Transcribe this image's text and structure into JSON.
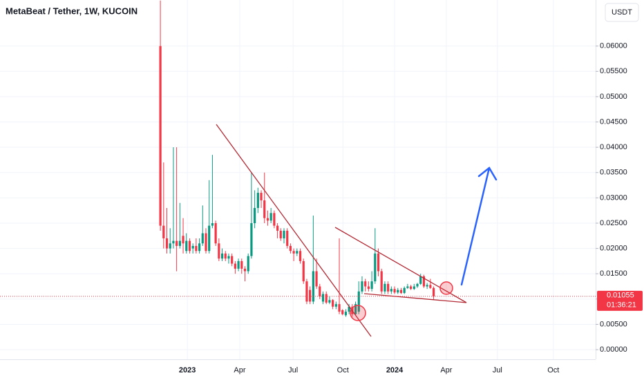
{
  "chart_data": {
    "type": "candlestick",
    "title": "MetaBeat / Tether, 1W, KUCOIN",
    "currency": "USDT",
    "up_color": "#089981",
    "down_color": "#f23645",
    "grid": true,
    "ylim": [
      -0.0019,
      0.0691
    ],
    "xlim": [
      -49.3,
      133.8
    ],
    "yticks": [
      {
        "value": 0,
        "label": "0.00000"
      },
      {
        "value": 0.005,
        "label": "0.00500"
      },
      {
        "value": 0.01,
        "label": "0.01000"
      },
      {
        "value": 0.015,
        "label": "0.01500"
      },
      {
        "value": 0.02,
        "label": "0.02000"
      },
      {
        "value": 0.025,
        "label": "0.02500"
      },
      {
        "value": 0.03,
        "label": "0.03000"
      },
      {
        "value": 0.035,
        "label": "0.03500"
      },
      {
        "value": 0.04,
        "label": "0.04000"
      },
      {
        "value": 0.045,
        "label": "0.04500"
      },
      {
        "value": 0.05,
        "label": "0.05000"
      },
      {
        "value": 0.055,
        "label": "0.05500"
      },
      {
        "value": 0.06,
        "label": "0.06000"
      }
    ],
    "xticks": [
      {
        "value": 8.3,
        "label": "2023"
      },
      {
        "value": 24.4,
        "label": "Apr"
      },
      {
        "value": 40.8,
        "label": "Jul"
      },
      {
        "value": 56.1,
        "label": "Oct"
      },
      {
        "value": 72.0,
        "label": "2024"
      },
      {
        "value": 87.9,
        "label": "Apr"
      },
      {
        "value": 103.6,
        "label": "Jul"
      },
      {
        "value": 120.8,
        "label": "Oct"
      }
    ],
    "current_price": {
      "value": 0.01055,
      "label": "0.01055"
    },
    "countdown": "01:36:21",
    "ohlc": [
      [
        0.06,
        0.069,
        0.0235,
        0.0245
      ],
      [
        0.0245,
        0.037,
        0.02,
        0.022
      ],
      [
        0.022,
        0.028,
        0.019,
        0.02
      ],
      [
        0.02,
        0.024,
        0.019,
        0.021
      ],
      [
        0.021,
        0.04,
        0.02,
        0.0215
      ],
      [
        0.0215,
        0.04,
        0.0155,
        0.0205
      ],
      [
        0.0205,
        0.029,
        0.02,
        0.0215
      ],
      [
        0.0225,
        0.026,
        0.019,
        0.021
      ],
      [
        0.0195,
        0.023,
        0.019,
        0.0215
      ],
      [
        0.0215,
        0.022,
        0.019,
        0.0195
      ],
      [
        0.02,
        0.021,
        0.019,
        0.0205
      ],
      [
        0.0205,
        0.022,
        0.019,
        0.0195
      ],
      [
        0.0195,
        0.022,
        0.019,
        0.021
      ],
      [
        0.021,
        0.0285,
        0.0205,
        0.023
      ],
      [
        0.023,
        0.024,
        0.019,
        0.0195
      ],
      [
        0.0195,
        0.0335,
        0.019,
        0.0245
      ],
      [
        0.0245,
        0.0385,
        0.024,
        0.025
      ],
      [
        0.025,
        0.0255,
        0.0205,
        0.021
      ],
      [
        0.021,
        0.022,
        0.0175,
        0.018
      ],
      [
        0.018,
        0.02,
        0.0175,
        0.019
      ],
      [
        0.019,
        0.0195,
        0.0175,
        0.018
      ],
      [
        0.018,
        0.019,
        0.017,
        0.0185
      ],
      [
        0.0185,
        0.019,
        0.0165,
        0.017
      ],
      [
        0.017,
        0.0175,
        0.015,
        0.016
      ],
      [
        0.016,
        0.018,
        0.0155,
        0.0175
      ],
      [
        0.0175,
        0.018,
        0.015,
        0.016
      ],
      [
        0.016,
        0.0165,
        0.0135,
        0.0155
      ],
      [
        0.0155,
        0.019,
        0.015,
        0.0185
      ],
      [
        0.0185,
        0.035,
        0.018,
        0.025
      ],
      [
        0.025,
        0.0315,
        0.024,
        0.028
      ],
      [
        0.028,
        0.032,
        0.027,
        0.031
      ],
      [
        0.031,
        0.0315,
        0.028,
        0.0295
      ],
      [
        0.0295,
        0.035,
        0.025,
        0.026
      ],
      [
        0.026,
        0.0275,
        0.0245,
        0.0255
      ],
      [
        0.0255,
        0.028,
        0.025,
        0.027
      ],
      [
        0.027,
        0.0275,
        0.024,
        0.0245
      ],
      [
        0.0245,
        0.025,
        0.022,
        0.0235
      ],
      [
        0.0235,
        0.024,
        0.0215,
        0.022
      ],
      [
        0.022,
        0.024,
        0.021,
        0.0235
      ],
      [
        0.0235,
        0.024,
        0.02,
        0.0205
      ],
      [
        0.0205,
        0.021,
        0.019,
        0.0195
      ],
      [
        0.0195,
        0.02,
        0.0175,
        0.019
      ],
      [
        0.019,
        0.02,
        0.0185,
        0.0195
      ],
      [
        0.0195,
        0.02,
        0.017,
        0.0175
      ],
      [
        0.0175,
        0.018,
        0.013,
        0.0135
      ],
      [
        0.0135,
        0.014,
        0.009,
        0.0095
      ],
      [
        0.0118,
        0.0125,
        0.009,
        0.0095
      ],
      [
        0.0095,
        0.0265,
        0.009,
        0.0155
      ],
      [
        0.0155,
        0.018,
        0.012,
        0.0125
      ],
      [
        0.0125,
        0.013,
        0.01,
        0.0105
      ],
      [
        0.0095,
        0.0115,
        0.009,
        0.011
      ],
      [
        0.011,
        0.0115,
        0.009,
        0.0093
      ],
      [
        0.0093,
        0.0105,
        0.009,
        0.0098
      ],
      [
        0.0098,
        0.01,
        0.008,
        0.0085
      ],
      [
        0.0085,
        0.0095,
        0.008,
        0.009
      ],
      [
        0.009,
        0.022,
        0.007,
        0.0075
      ],
      [
        0.0078,
        0.008,
        0.0068,
        0.007
      ],
      [
        0.0068,
        0.008,
        0.0065,
        0.0075
      ],
      [
        0.0075,
        0.009,
        0.007,
        0.0085
      ],
      [
        0.0085,
        0.009,
        0.0065,
        0.007
      ],
      [
        0.007,
        0.0095,
        0.0068,
        0.009
      ],
      [
        0.0075,
        0.0135,
        0.007,
        0.0115
      ],
      [
        0.0115,
        0.0145,
        0.011,
        0.0135
      ],
      [
        0.0135,
        0.014,
        0.0115,
        0.0125
      ],
      [
        0.0125,
        0.0135,
        0.0115,
        0.012
      ],
      [
        0.012,
        0.0155,
        0.0115,
        0.0135
      ],
      [
        0.0135,
        0.024,
        0.013,
        0.019
      ],
      [
        0.019,
        0.02,
        0.0145,
        0.0155
      ],
      [
        0.0155,
        0.016,
        0.011,
        0.0115
      ],
      [
        0.0115,
        0.0135,
        0.011,
        0.013
      ],
      [
        0.013,
        0.0135,
        0.011,
        0.0115
      ],
      [
        0.0115,
        0.0125,
        0.011,
        0.012
      ],
      [
        0.012,
        0.0125,
        0.011,
        0.0113
      ],
      [
        0.0113,
        0.0122,
        0.011,
        0.0118
      ],
      [
        0.0118,
        0.0122,
        0.011,
        0.0112
      ],
      [
        0.0112,
        0.0125,
        0.011,
        0.0122
      ],
      [
        0.0122,
        0.013,
        0.012,
        0.0125
      ],
      [
        0.0125,
        0.0128,
        0.0118,
        0.012
      ],
      [
        0.012,
        0.013,
        0.0118,
        0.0125
      ],
      [
        0.0125,
        0.0132,
        0.0122,
        0.013
      ],
      [
        0.013,
        0.015,
        0.0128,
        0.0145
      ],
      [
        0.0145,
        0.0148,
        0.0122,
        0.0125
      ],
      [
        0.0125,
        0.0132,
        0.012,
        0.0128
      ],
      [
        0.0128,
        0.014,
        0.012,
        0.0122
      ],
      [
        0.0122,
        0.0125,
        0.0098,
        0.0105
      ]
    ]
  }
}
